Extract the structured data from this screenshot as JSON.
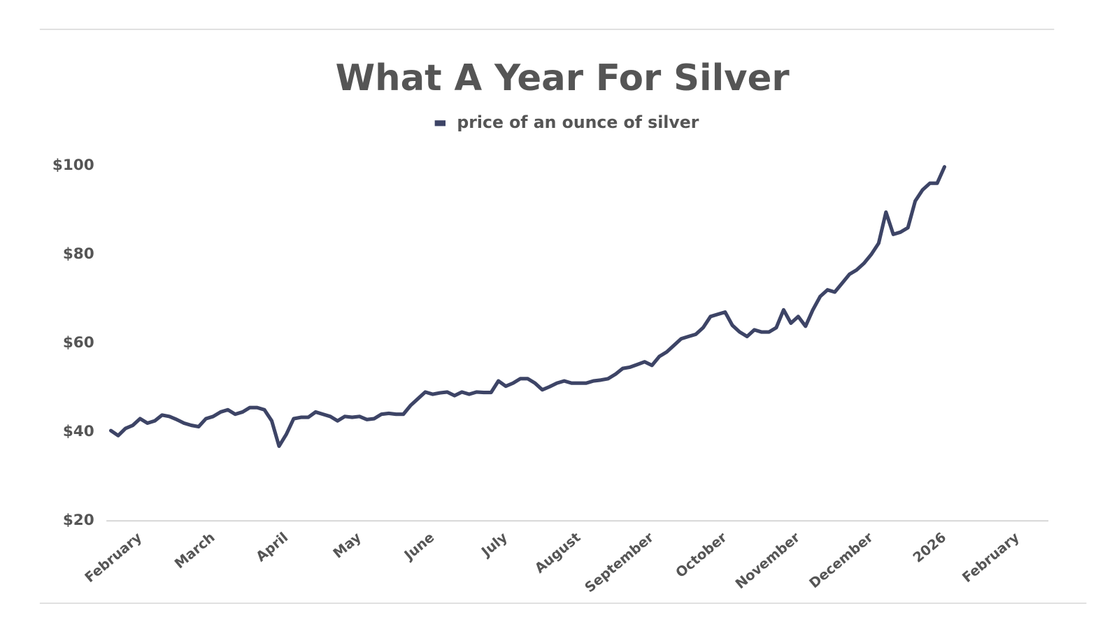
{
  "chart_data": {
    "type": "line",
    "title": "What A Year For Silver",
    "categories": [
      null,
      null,
      null,
      null,
      "February",
      null,
      null,
      null,
      null,
      null,
      null,
      null,
      null,
      null,
      "March",
      null,
      null,
      null,
      null,
      null,
      null,
      null,
      null,
      null,
      "April",
      null,
      null,
      null,
      null,
      null,
      null,
      null,
      null,
      null,
      "May",
      null,
      null,
      null,
      null,
      null,
      null,
      null,
      null,
      null,
      "June",
      null,
      null,
      null,
      null,
      null,
      null,
      null,
      null,
      null,
      "July",
      null,
      null,
      null,
      null,
      null,
      null,
      null,
      null,
      null,
      "August",
      null,
      null,
      null,
      null,
      null,
      null,
      null,
      null,
      null,
      "September",
      null,
      null,
      null,
      null,
      null,
      null,
      null,
      null,
      null,
      "October",
      null,
      null,
      null,
      null,
      null,
      null,
      null,
      null,
      null,
      "November",
      null,
      null,
      null,
      null,
      null,
      null,
      null,
      null,
      null,
      "December",
      null,
      null,
      null,
      null,
      null,
      null,
      null,
      null,
      null,
      "2026",
      null,
      null,
      null,
      null,
      null,
      null,
      null,
      null,
      null,
      "February"
    ],
    "series": [
      {
        "name": "price of an ounce of silver",
        "color": "#3d4466",
        "values": [
          40.3,
          39.2,
          40.8,
          41.5,
          43,
          42,
          42.5,
          43.8,
          43.5,
          42.8,
          42,
          41.5,
          41.2,
          43,
          43.5,
          44.5,
          45,
          44,
          44.5,
          45.5,
          45.5,
          45,
          42.5,
          36.8,
          39.5,
          43,
          43.3,
          43.3,
          44.5,
          44,
          43.5,
          42.5,
          43.5,
          43.3,
          43.5,
          42.8,
          43,
          44,
          44.2,
          44,
          44,
          46,
          47.5,
          49,
          48.5,
          48.8,
          49,
          48.2,
          49,
          48.5,
          49,
          48.9,
          48.9,
          51.5,
          50.3,
          51,
          52,
          52,
          51,
          49.5,
          50.2,
          51,
          51.5,
          51,
          51,
          51,
          51.5,
          51.7,
          52,
          53,
          54.3,
          54.6,
          55.2,
          55.8,
          55,
          57,
          58,
          59.5,
          61,
          61.5,
          62,
          63.5,
          66,
          66.5,
          67,
          64,
          62.5,
          61.5,
          63,
          62.5,
          62.5,
          63.5,
          67.5,
          64.5,
          66,
          63.8,
          67.5,
          70.5,
          72,
          71.5,
          73.5,
          75.5,
          76.5,
          78,
          80,
          82.5,
          89.5,
          84.5,
          85,
          86,
          92,
          94.5,
          96,
          96,
          99.7,
          null,
          null,
          null,
          null,
          null,
          null,
          null,
          null,
          null,
          null
        ]
      }
    ],
    "ylim": [
      20,
      100
    ],
    "yticks": [
      {
        "value": 20,
        "label": "$20"
      },
      {
        "value": 40,
        "label": "$40"
      },
      {
        "value": 60,
        "label": "$60"
      },
      {
        "value": 80,
        "label": "$80"
      },
      {
        "value": 100,
        "label": "$100"
      }
    ],
    "grid": false,
    "legend": "top"
  }
}
